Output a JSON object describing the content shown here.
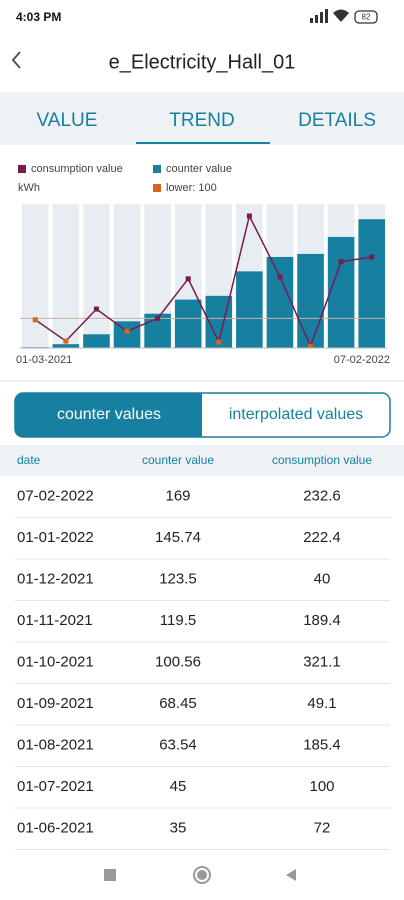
{
  "status_bar": {
    "time": "4:03 PM",
    "battery": "82"
  },
  "header": {
    "title": "e_Electricity_Hall_01"
  },
  "tabs": [
    "VALUE",
    "TREND",
    "DETAILS"
  ],
  "chart_data": {
    "type": "bar",
    "y_label": "kWh",
    "categories": [
      "01-03-2021",
      null,
      null,
      null,
      null,
      null,
      null,
      null,
      null,
      null,
      null,
      "07-02-2022"
    ],
    "series": [
      {
        "name": "consumption value",
        "type": "line",
        "axis": "y2",
        "color": "#7a1a4e",
        "values": [
          97,
          51,
          120,
          72,
          100,
          185.4,
          49.1,
          321.1,
          189.4,
          40,
          222.4,
          232.6
        ]
      },
      {
        "name": "counter value",
        "color": "#177fa0",
        "values": [
          1,
          5,
          18,
          35,
          45,
          63.54,
          68.45,
          100.56,
          119.5,
          123.5,
          145.74,
          169
        ]
      }
    ],
    "threshold": {
      "label": "lower: 100",
      "value": 100,
      "color": "#d9651d"
    },
    "ylim": [
      0,
      189
    ],
    "y2lim": [
      36,
      347
    ]
  },
  "toggle": [
    "counter values",
    "interpolated values"
  ],
  "table": {
    "columns": [
      "date",
      "counter value",
      "consumption value"
    ],
    "rows": [
      [
        "07-02-2022",
        169,
        232.6
      ],
      [
        "01-01-2022",
        145.74,
        222.4
      ],
      [
        "01-12-2021",
        123.5,
        40
      ],
      [
        "01-11-2021",
        119.5,
        189.4
      ],
      [
        "01-10-2021",
        100.56,
        321.1
      ],
      [
        "01-09-2021",
        68.45,
        49.1
      ],
      [
        "01-08-2021",
        63.54,
        185.4
      ],
      [
        "01-07-2021",
        45,
        100
      ],
      [
        "01-06-2021",
        35,
        72
      ]
    ]
  }
}
